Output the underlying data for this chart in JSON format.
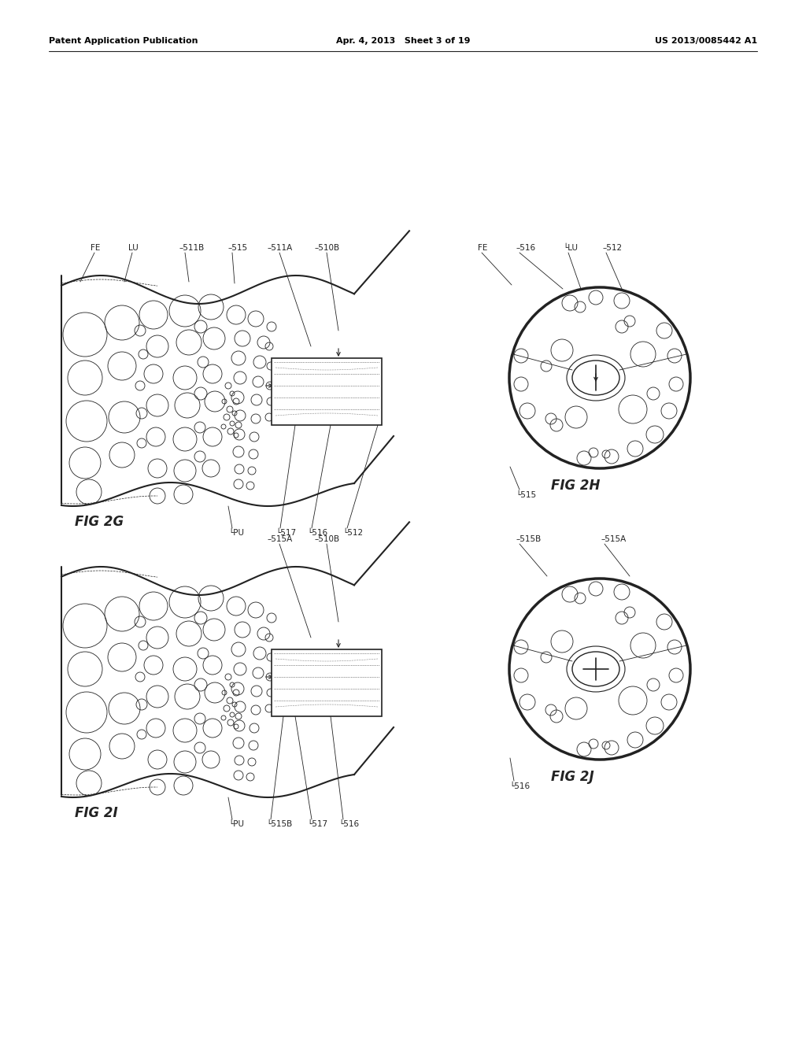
{
  "header_left": "Patent Application Publication",
  "header_mid": "Apr. 4, 2013   Sheet 3 of 19",
  "header_right": "US 2013/0085442 A1",
  "bg_color": "#ffffff",
  "line_color": "#222222",
  "fig2g_label": "FIG 2G",
  "fig2h_label": "FIG 2H",
  "fig2i_label": "FIG 2I",
  "fig2j_label": "FIG 2J"
}
